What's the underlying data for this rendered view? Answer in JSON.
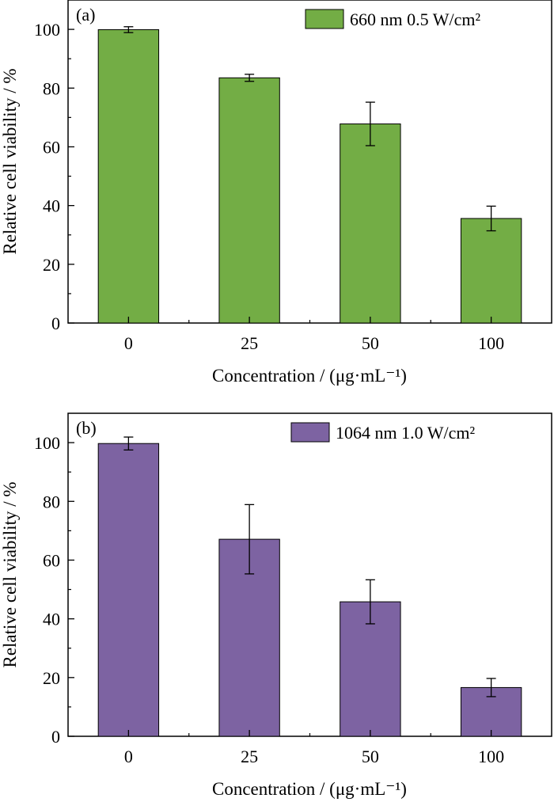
{
  "chart_data": [
    {
      "type": "bar",
      "panel_label": "(a)",
      "categories": [
        "0",
        "25",
        "50",
        "100"
      ],
      "values": [
        99.9,
        83.5,
        67.8,
        35.6
      ],
      "errors": [
        1.0,
        1.2,
        7.4,
        4.2
      ],
      "legend": "660 nm 0.5 W/cm²",
      "color": "#73ad45",
      "xlabel": "Concentration / (μg·mL⁻¹)",
      "ylabel": "Relative cell viability / %",
      "ylim": [
        0,
        110
      ],
      "yticks": [
        0,
        20,
        40,
        60,
        80,
        100
      ],
      "legend_position": "top-right",
      "grid": false
    },
    {
      "type": "bar",
      "panel_label": "(b)",
      "categories": [
        "0",
        "25",
        "50",
        "100"
      ],
      "values": [
        99.7,
        67.1,
        45.8,
        16.6
      ],
      "errors": [
        2.2,
        11.8,
        7.5,
        3.1
      ],
      "legend": "1064 nm 1.0 W/cm²",
      "color": "#7d63a2",
      "xlabel": "Concentration / (μg·mL⁻¹)",
      "ylabel": "Relative cell viability / %",
      "ylim": [
        0,
        110
      ],
      "yticks": [
        0,
        20,
        40,
        60,
        80,
        100
      ],
      "legend_position": "top-right",
      "grid": false
    }
  ]
}
